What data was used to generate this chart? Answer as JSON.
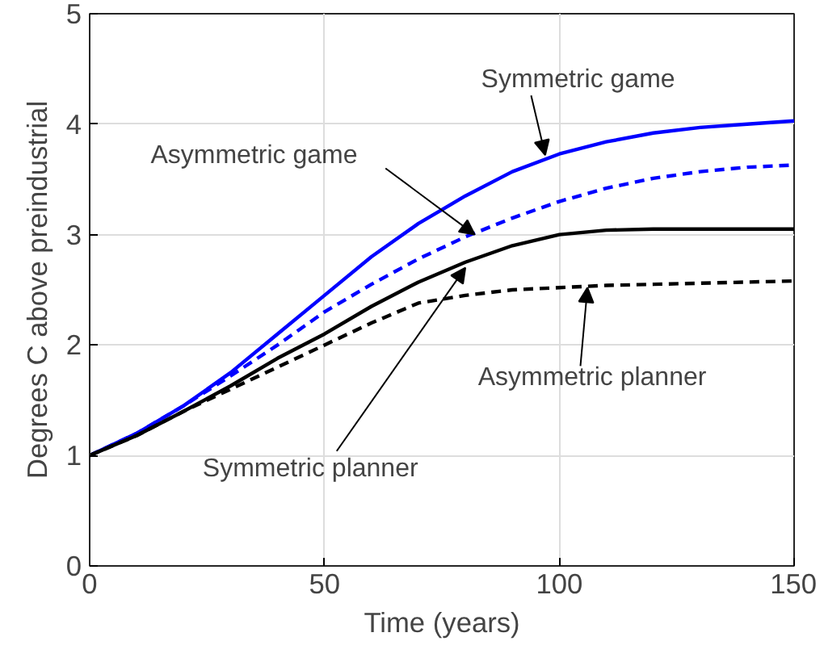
{
  "chart_data": {
    "type": "line",
    "xlabel": "Time (years)",
    "ylabel": "Degrees C above preindustrial",
    "x": [
      0,
      10,
      20,
      30,
      40,
      50,
      60,
      70,
      80,
      90,
      100,
      110,
      120,
      130,
      140,
      150
    ],
    "series": [
      {
        "color": "#0000ff",
        "line_style": "solid",
        "values": [
          1.0,
          1.2,
          1.45,
          1.75,
          2.1,
          2.45,
          2.8,
          3.1,
          3.35,
          3.57,
          3.73,
          3.84,
          3.92,
          3.97,
          4.0,
          4.03
        ]
      },
      {
        "color": "#0000ff",
        "line_style": "dashed",
        "values": [
          1.0,
          1.2,
          1.45,
          1.72,
          2.0,
          2.3,
          2.55,
          2.78,
          2.98,
          3.15,
          3.3,
          3.42,
          3.51,
          3.57,
          3.61,
          3.63
        ]
      },
      {
        "color": "#000000",
        "line_style": "solid",
        "values": [
          1.0,
          1.18,
          1.4,
          1.63,
          1.88,
          2.1,
          2.35,
          2.57,
          2.75,
          2.9,
          3.0,
          3.04,
          3.05,
          3.05,
          3.05,
          3.05
        ]
      },
      {
        "color": "#000000",
        "line_style": "dashed",
        "values": [
          1.0,
          1.18,
          1.4,
          1.6,
          1.8,
          2.0,
          2.2,
          2.38,
          2.45,
          2.5,
          2.52,
          2.54,
          2.55,
          2.56,
          2.57,
          2.58
        ]
      }
    ],
    "annotations": [
      {
        "text": "Symmetric game",
        "x": 97,
        "y": 3.72
      },
      {
        "text": "Asymmetric game",
        "x": 82,
        "y": 3.0
      },
      {
        "text": "Symmetric planner",
        "x": 80,
        "y": 2.7
      },
      {
        "text": "Asymmetric planner",
        "x": 106,
        "y": 2.52
      }
    ],
    "xlim": [
      0,
      150
    ],
    "xticks": [
      0,
      50,
      100,
      150
    ],
    "ylim": [
      0,
      5
    ],
    "yticks": [
      0,
      1,
      2,
      3,
      4,
      5
    ],
    "grid": true,
    "marker": "none"
  }
}
